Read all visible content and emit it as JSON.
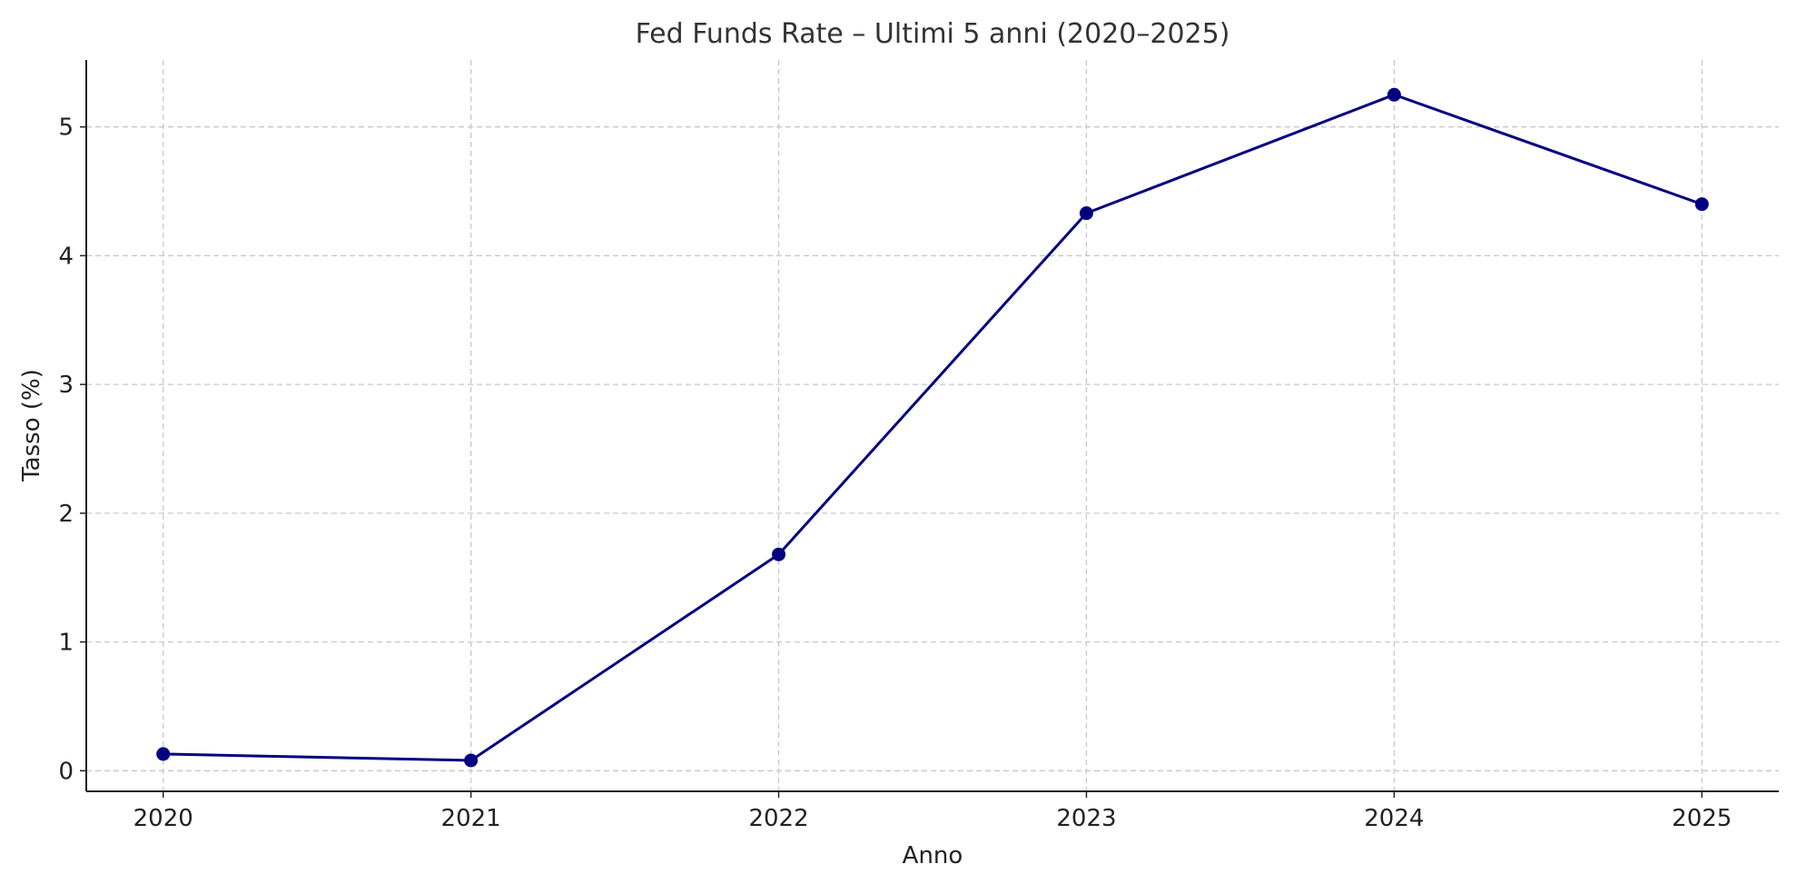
{
  "chart_data": {
    "type": "line",
    "title": "Fed Funds Rate – Ultimi 5 anni (2020–2025)",
    "xlabel": "Anno",
    "ylabel": "Tasso (%)",
    "x": [
      2020,
      2021,
      2022,
      2023,
      2024,
      2025
    ],
    "x_tick_labels": [
      "2020",
      "2021",
      "2022",
      "2023",
      "2024",
      "2025"
    ],
    "y_ticks": [
      0,
      1,
      2,
      3,
      4,
      5
    ],
    "y_tick_labels": [
      "0",
      "1",
      "2",
      "3",
      "4",
      "5"
    ],
    "series": [
      {
        "values": [
          0.13,
          0.08,
          1.68,
          4.33,
          5.25,
          4.4
        ],
        "color": "#000080",
        "marker": "circle"
      }
    ],
    "xlim": [
      2019.75,
      2025.25
    ],
    "ylim": [
      -0.16,
      5.52
    ],
    "grid": true,
    "grid_style": "dashed",
    "legend": "none"
  }
}
